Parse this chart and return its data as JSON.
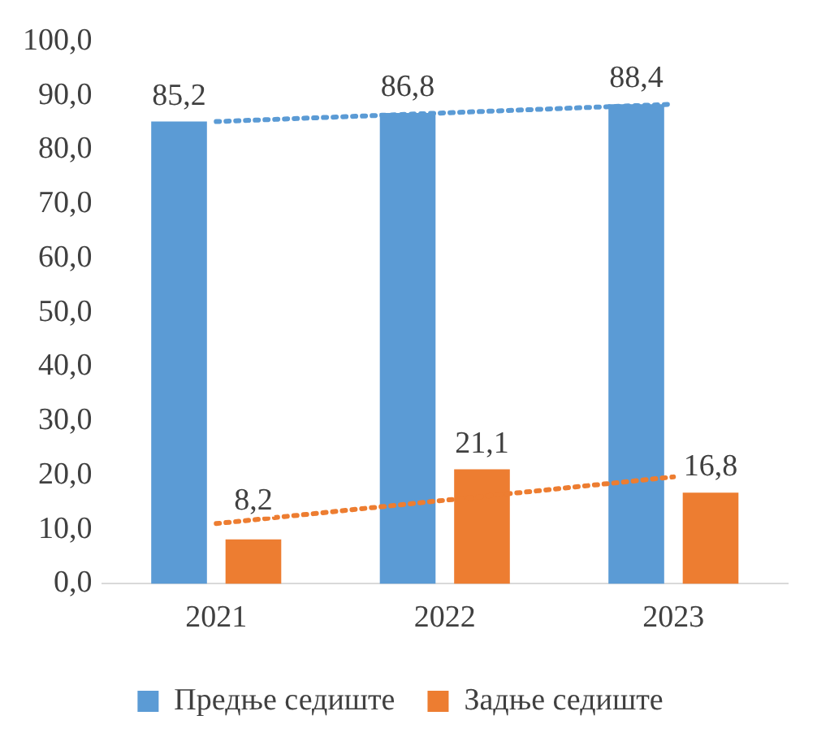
{
  "chart_data": {
    "type": "bar",
    "categories": [
      "2021",
      "2022",
      "2023"
    ],
    "series": [
      {
        "name": "Предње седиште",
        "color": "#5b9bd5",
        "values": [
          85.2,
          86.8,
          88.4
        ],
        "value_labels": [
          "85,2",
          "86,8",
          "88,4"
        ]
      },
      {
        "name": "Задње седиште",
        "color": "#ed7d31",
        "values": [
          8.2,
          21.1,
          16.8
        ],
        "value_labels": [
          "8,2",
          "21,1",
          "16,8"
        ]
      },
      {
        "type": "line",
        "color": "#5b9bd5",
        "values": [
          85.2,
          86.8,
          88.4
        ],
        "line_style": "dotted"
      },
      {
        "type": "line",
        "color": "#ed7d31",
        "values": [
          11.1,
          15.4,
          19.7
        ],
        "line_style": "dotted"
      }
    ],
    "ylim": [
      0,
      100
    ],
    "yticks": [
      {
        "value": 0,
        "label": "0,0"
      },
      {
        "value": 10,
        "label": "10,0"
      },
      {
        "value": 20,
        "label": "20,0"
      },
      {
        "value": 30,
        "label": "30,0"
      },
      {
        "value": 40,
        "label": "40,0"
      },
      {
        "value": 50,
        "label": "50,0"
      },
      {
        "value": 60,
        "label": "60,0"
      },
      {
        "value": 70,
        "label": "70,0"
      },
      {
        "value": 80,
        "label": "80,0"
      },
      {
        "value": 90,
        "label": "90,0"
      },
      {
        "value": 100,
        "label": "100,0"
      }
    ],
    "grid": false,
    "legend": "bottom",
    "marker": "none"
  }
}
